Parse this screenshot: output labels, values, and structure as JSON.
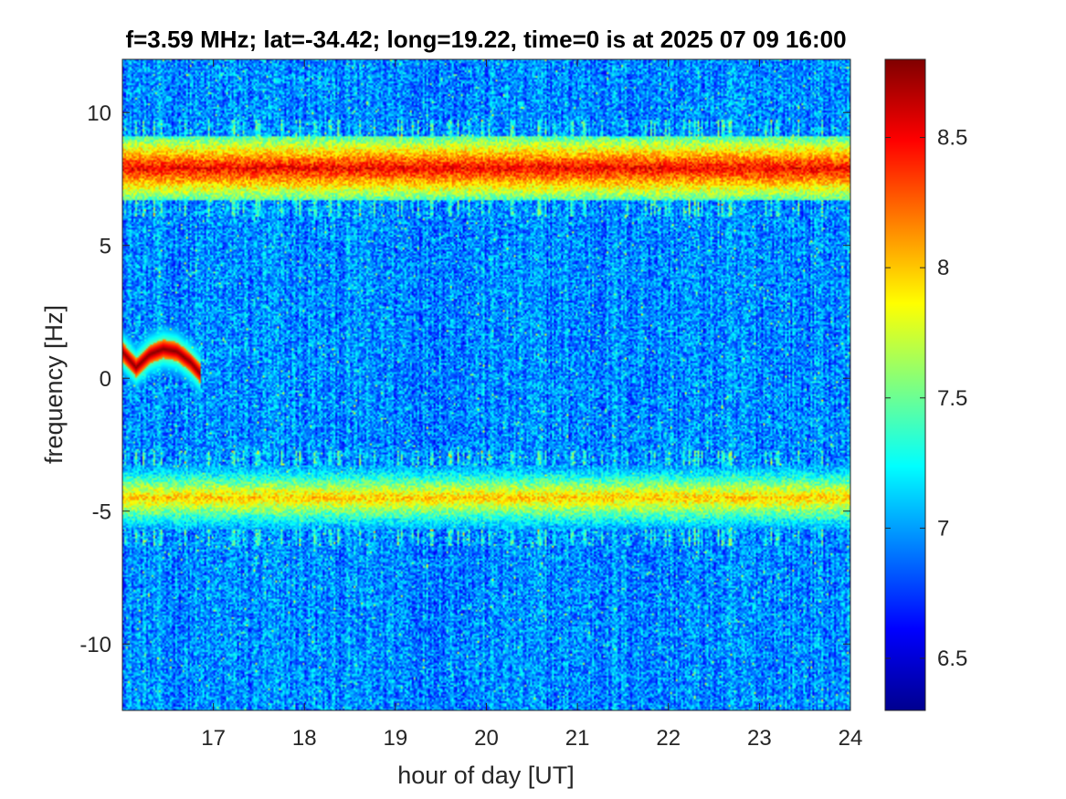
{
  "chart_data": {
    "type": "heatmap",
    "title": "f=3.59 MHz;  lat=-34.42; long=19.22, time=0 is at 2025 07 09 16:00",
    "xlabel": "hour of day [UT]",
    "ylabel": "frequency [Hz]",
    "xlim": [
      16,
      24
    ],
    "ylim": [
      -12.5,
      12
    ],
    "xticks": [
      17,
      18,
      19,
      20,
      21,
      22,
      23,
      24
    ],
    "xtick_labels": [
      "17",
      "18",
      "19",
      "20",
      "21",
      "22",
      "23",
      "24"
    ],
    "yticks": [
      -10,
      -5,
      0,
      5,
      10
    ],
    "ytick_labels": [
      "-10",
      "-5",
      "0",
      "5",
      "10"
    ],
    "colormap": "jet",
    "clim": [
      6.3,
      8.8
    ],
    "colorbar_ticks": [
      6.5,
      7,
      7.5,
      8,
      8.5
    ],
    "colorbar_tick_labels": [
      "6.5",
      "7",
      "7.5",
      "8",
      "8.5"
    ],
    "background_level": 6.95,
    "features": [
      {
        "kind": "horizontal-band",
        "frequency": 7.9,
        "level": 8.5,
        "x_range": [
          16,
          24
        ]
      },
      {
        "kind": "horizontal-band",
        "frequency": -4.5,
        "level": 8.0,
        "x_range": [
          16,
          24
        ]
      },
      {
        "kind": "doppler-trace",
        "level": 8.8,
        "points": [
          [
            16.0,
            1.0
          ],
          [
            16.15,
            0.4
          ],
          [
            16.3,
            0.9
          ],
          [
            16.45,
            1.1
          ],
          [
            16.6,
            1.0
          ],
          [
            16.75,
            0.6
          ],
          [
            16.85,
            0.2
          ]
        ]
      }
    ]
  }
}
